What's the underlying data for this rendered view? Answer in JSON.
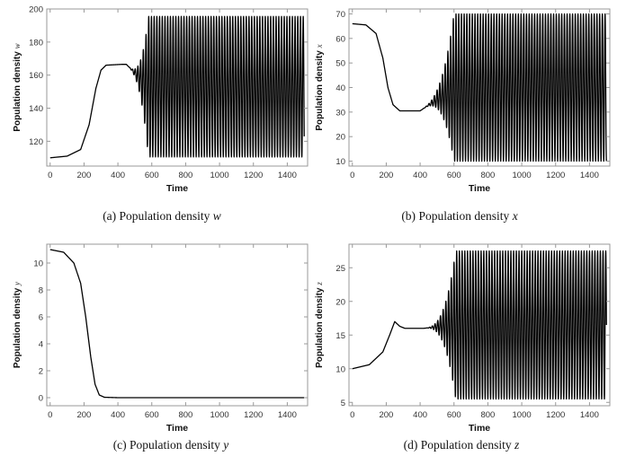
{
  "charts": [
    {
      "caption_label": "(a)",
      "caption_text": "Population density",
      "caption_var": "w",
      "chart_data": {
        "type": "line",
        "xlabel": "Time",
        "ylabel": "Population density",
        "ylabel_var": "w",
        "xlim": [
          -20,
          1520
        ],
        "ylim": [
          105,
          200
        ],
        "xticks": [
          0,
          200,
          400,
          600,
          800,
          1000,
          1200,
          1400
        ],
        "yticks": [
          120,
          140,
          160,
          180,
          200
        ],
        "series": [
          {
            "profile": [
              [
                0,
                110
              ],
              [
                100,
                111
              ],
              [
                180,
                115
              ],
              [
                230,
                130
              ],
              [
                270,
                152
              ],
              [
                300,
                163
              ],
              [
                330,
                166
              ],
              [
                420,
                166.5
              ]
            ],
            "oscillation": {
              "start": 450,
              "full_at": 580,
              "end": 1500,
              "center": 153,
              "amplitude_full": 42.5,
              "period": 16
            }
          }
        ]
      }
    },
    {
      "caption_label": "(b)",
      "caption_text": "Population density",
      "caption_var": "x",
      "chart_data": {
        "type": "line",
        "xlabel": "Time",
        "ylabel": "Population density",
        "ylabel_var": "x",
        "xlim": [
          -20,
          1520
        ],
        "ylim": [
          8,
          72
        ],
        "xticks": [
          0,
          200,
          400,
          600,
          800,
          1000,
          1200,
          1400
        ],
        "yticks": [
          10,
          20,
          30,
          40,
          50,
          60,
          70
        ],
        "series": [
          {
            "profile": [
              [
                0,
                66
              ],
              [
                80,
                65.5
              ],
              [
                140,
                62
              ],
              [
                180,
                52
              ],
              [
                210,
                40
              ],
              [
                240,
                33
              ],
              [
                280,
                30.5
              ],
              [
                400,
                30.5
              ]
            ],
            "oscillation": {
              "start": 400,
              "full_at": 600,
              "end": 1500,
              "center": 40,
              "amplitude_full": 30,
              "period": 16
            }
          }
        ]
      }
    },
    {
      "caption_label": "(c)",
      "caption_text": "Population density",
      "caption_var": "y",
      "chart_data": {
        "type": "line",
        "xlabel": "Time",
        "ylabel": "Population density",
        "ylabel_var": "y",
        "xlim": [
          -20,
          1520
        ],
        "ylim": [
          -0.6,
          11.4
        ],
        "xticks": [
          0,
          200,
          400,
          600,
          800,
          1000,
          1200,
          1400
        ],
        "yticks": [
          0,
          2,
          4,
          6,
          8,
          10
        ],
        "series": [
          {
            "profile": [
              [
                0,
                11
              ],
              [
                80,
                10.8
              ],
              [
                140,
                10
              ],
              [
                180,
                8.5
              ],
              [
                210,
                6
              ],
              [
                240,
                3
              ],
              [
                265,
                1
              ],
              [
                290,
                0.2
              ],
              [
                320,
                0.03
              ],
              [
                400,
                0
              ],
              [
                1500,
                0
              ]
            ],
            "oscillation": null
          }
        ]
      }
    },
    {
      "caption_label": "(d)",
      "caption_text": "Population density",
      "caption_var": "z",
      "chart_data": {
        "type": "line",
        "xlabel": "Time",
        "ylabel": "Population density",
        "ylabel_var": "z",
        "xlim": [
          -20,
          1520
        ],
        "ylim": [
          4.5,
          28.5
        ],
        "xticks": [
          0,
          200,
          400,
          600,
          800,
          1000,
          1200,
          1400
        ],
        "yticks": [
          5,
          10,
          15,
          20,
          25
        ],
        "series": [
          {
            "profile": [
              [
                0,
                10
              ],
              [
                100,
                10.6
              ],
              [
                180,
                12.5
              ],
              [
                220,
                15
              ],
              [
                250,
                17
              ],
              [
                280,
                16.3
              ],
              [
                310,
                16
              ],
              [
                400,
                16
              ]
            ],
            "oscillation": {
              "start": 420,
              "full_at": 610,
              "end": 1500,
              "center": 16.5,
              "amplitude_full": 11,
              "period": 16
            }
          }
        ]
      }
    }
  ]
}
